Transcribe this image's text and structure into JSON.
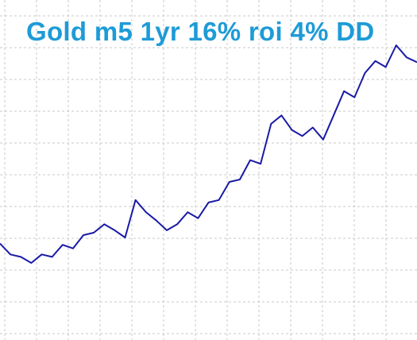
{
  "overlay": {
    "title": "Gold m5 1yr 16% roi 4% DD"
  },
  "colors": {
    "title": "#1E9BD7",
    "line": "#1A1AA6",
    "grid": "#C8C8C8",
    "background": "#FFFFFF"
  },
  "chart_data": {
    "type": "line",
    "grid": true,
    "series": [
      {
        "values": [
          0,
          -0.9,
          -1.1,
          -1.6,
          -0.9,
          -1.1,
          -0.1,
          -0.4,
          0.7,
          0.9,
          1.6,
          1.1,
          0.5,
          3.6,
          2.6,
          1.9,
          1.1,
          1.6,
          2.6,
          2.1,
          3.4,
          3.6,
          5.1,
          5.3,
          6.9,
          6.6,
          9.9,
          10.6,
          9.4,
          8.9,
          9.6,
          8.6,
          10.6,
          12.6,
          12.1,
          14.1,
          15.1,
          14.6,
          16.4,
          15.4,
          15.0
        ]
      }
    ]
  }
}
